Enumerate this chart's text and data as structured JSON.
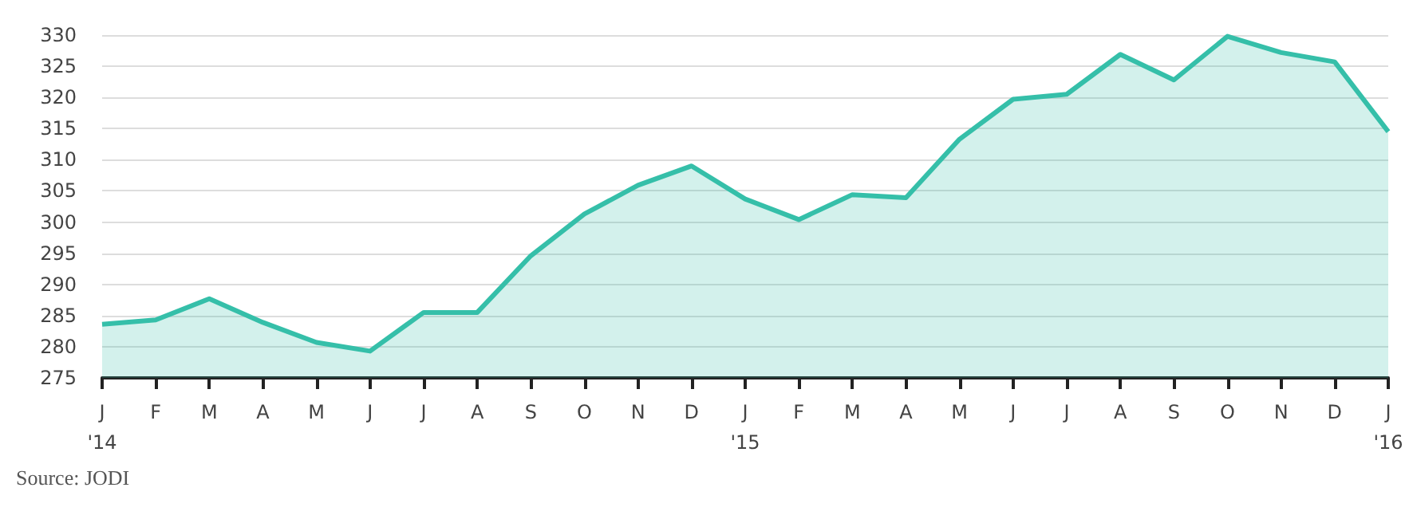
{
  "chart_data": {
    "type": "area",
    "categories": [
      "J\n'14",
      "F",
      "M",
      "A",
      "M",
      "J",
      "J",
      "A",
      "S",
      "O",
      "N",
      "D",
      "J\n'15",
      "F",
      "M",
      "A",
      "M",
      "J",
      "J",
      "A",
      "S",
      "O",
      "N",
      "D",
      "J\n'16"
    ],
    "series": [
      {
        "color": "#35bfa9",
        "values": [
          283.6,
          284.3,
          287.7,
          283.9,
          280.7,
          279.3,
          285.5,
          285.5,
          294.6,
          301.3,
          305.9,
          309.0,
          303.7,
          300.4,
          304.4,
          303.9,
          313.3,
          319.7,
          320.5,
          326.9,
          322.8,
          329.8,
          327.2,
          325.7,
          314.5
        ]
      }
    ],
    "ylim": [
      275,
      330
    ],
    "yticks": [
      275,
      280,
      285,
      290,
      295,
      300,
      305,
      310,
      315,
      320,
      325,
      330
    ],
    "grid": "y",
    "marker": "none",
    "line_style": "solid",
    "annotations": [
      "Source: JODI"
    ]
  }
}
